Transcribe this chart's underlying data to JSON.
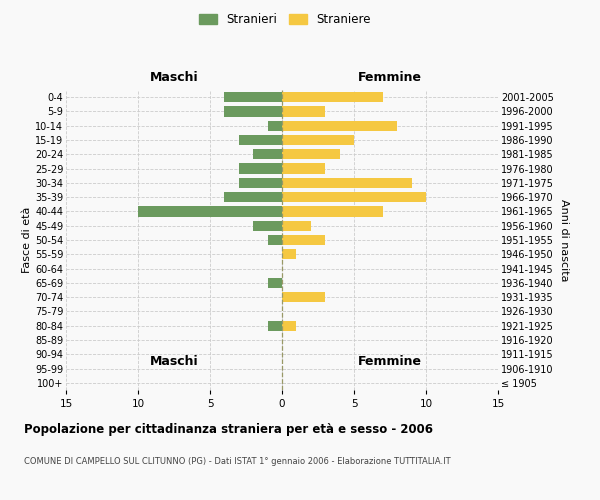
{
  "age_groups": [
    "100+",
    "95-99",
    "90-94",
    "85-89",
    "80-84",
    "75-79",
    "70-74",
    "65-69",
    "60-64",
    "55-59",
    "50-54",
    "45-49",
    "40-44",
    "35-39",
    "30-34",
    "25-29",
    "20-24",
    "15-19",
    "10-14",
    "5-9",
    "0-4"
  ],
  "birth_years": [
    "≤ 1905",
    "1906-1910",
    "1911-1915",
    "1916-1920",
    "1921-1925",
    "1926-1930",
    "1931-1935",
    "1936-1940",
    "1941-1945",
    "1946-1950",
    "1951-1955",
    "1956-1960",
    "1961-1965",
    "1966-1970",
    "1971-1975",
    "1976-1980",
    "1981-1985",
    "1986-1990",
    "1991-1995",
    "1996-2000",
    "2001-2005"
  ],
  "males": [
    0,
    0,
    0,
    0,
    1,
    0,
    0,
    1,
    0,
    0,
    1,
    2,
    10,
    4,
    3,
    3,
    2,
    3,
    1,
    4,
    4
  ],
  "females": [
    0,
    0,
    0,
    0,
    1,
    0,
    3,
    0,
    0,
    1,
    3,
    2,
    7,
    10,
    9,
    3,
    4,
    5,
    8,
    3,
    7
  ],
  "male_color": "#6b9a5e",
  "female_color": "#f5c842",
  "background_color": "#f9f9f9",
  "grid_color": "#cccccc",
  "title": "Popolazione per cittadinanza straniera per età e sesso - 2006",
  "subtitle": "COMUNE DI CAMPELLO SUL CLITUNNO (PG) - Dati ISTAT 1° gennaio 2006 - Elaborazione TUTTITALIA.IT",
  "xlabel_left": "Maschi",
  "xlabel_right": "Femmine",
  "ylabel_left": "Fasce di età",
  "ylabel_right": "Anni di nascita",
  "legend_male": "Stranieri",
  "legend_female": "Straniere",
  "xlim": 15
}
